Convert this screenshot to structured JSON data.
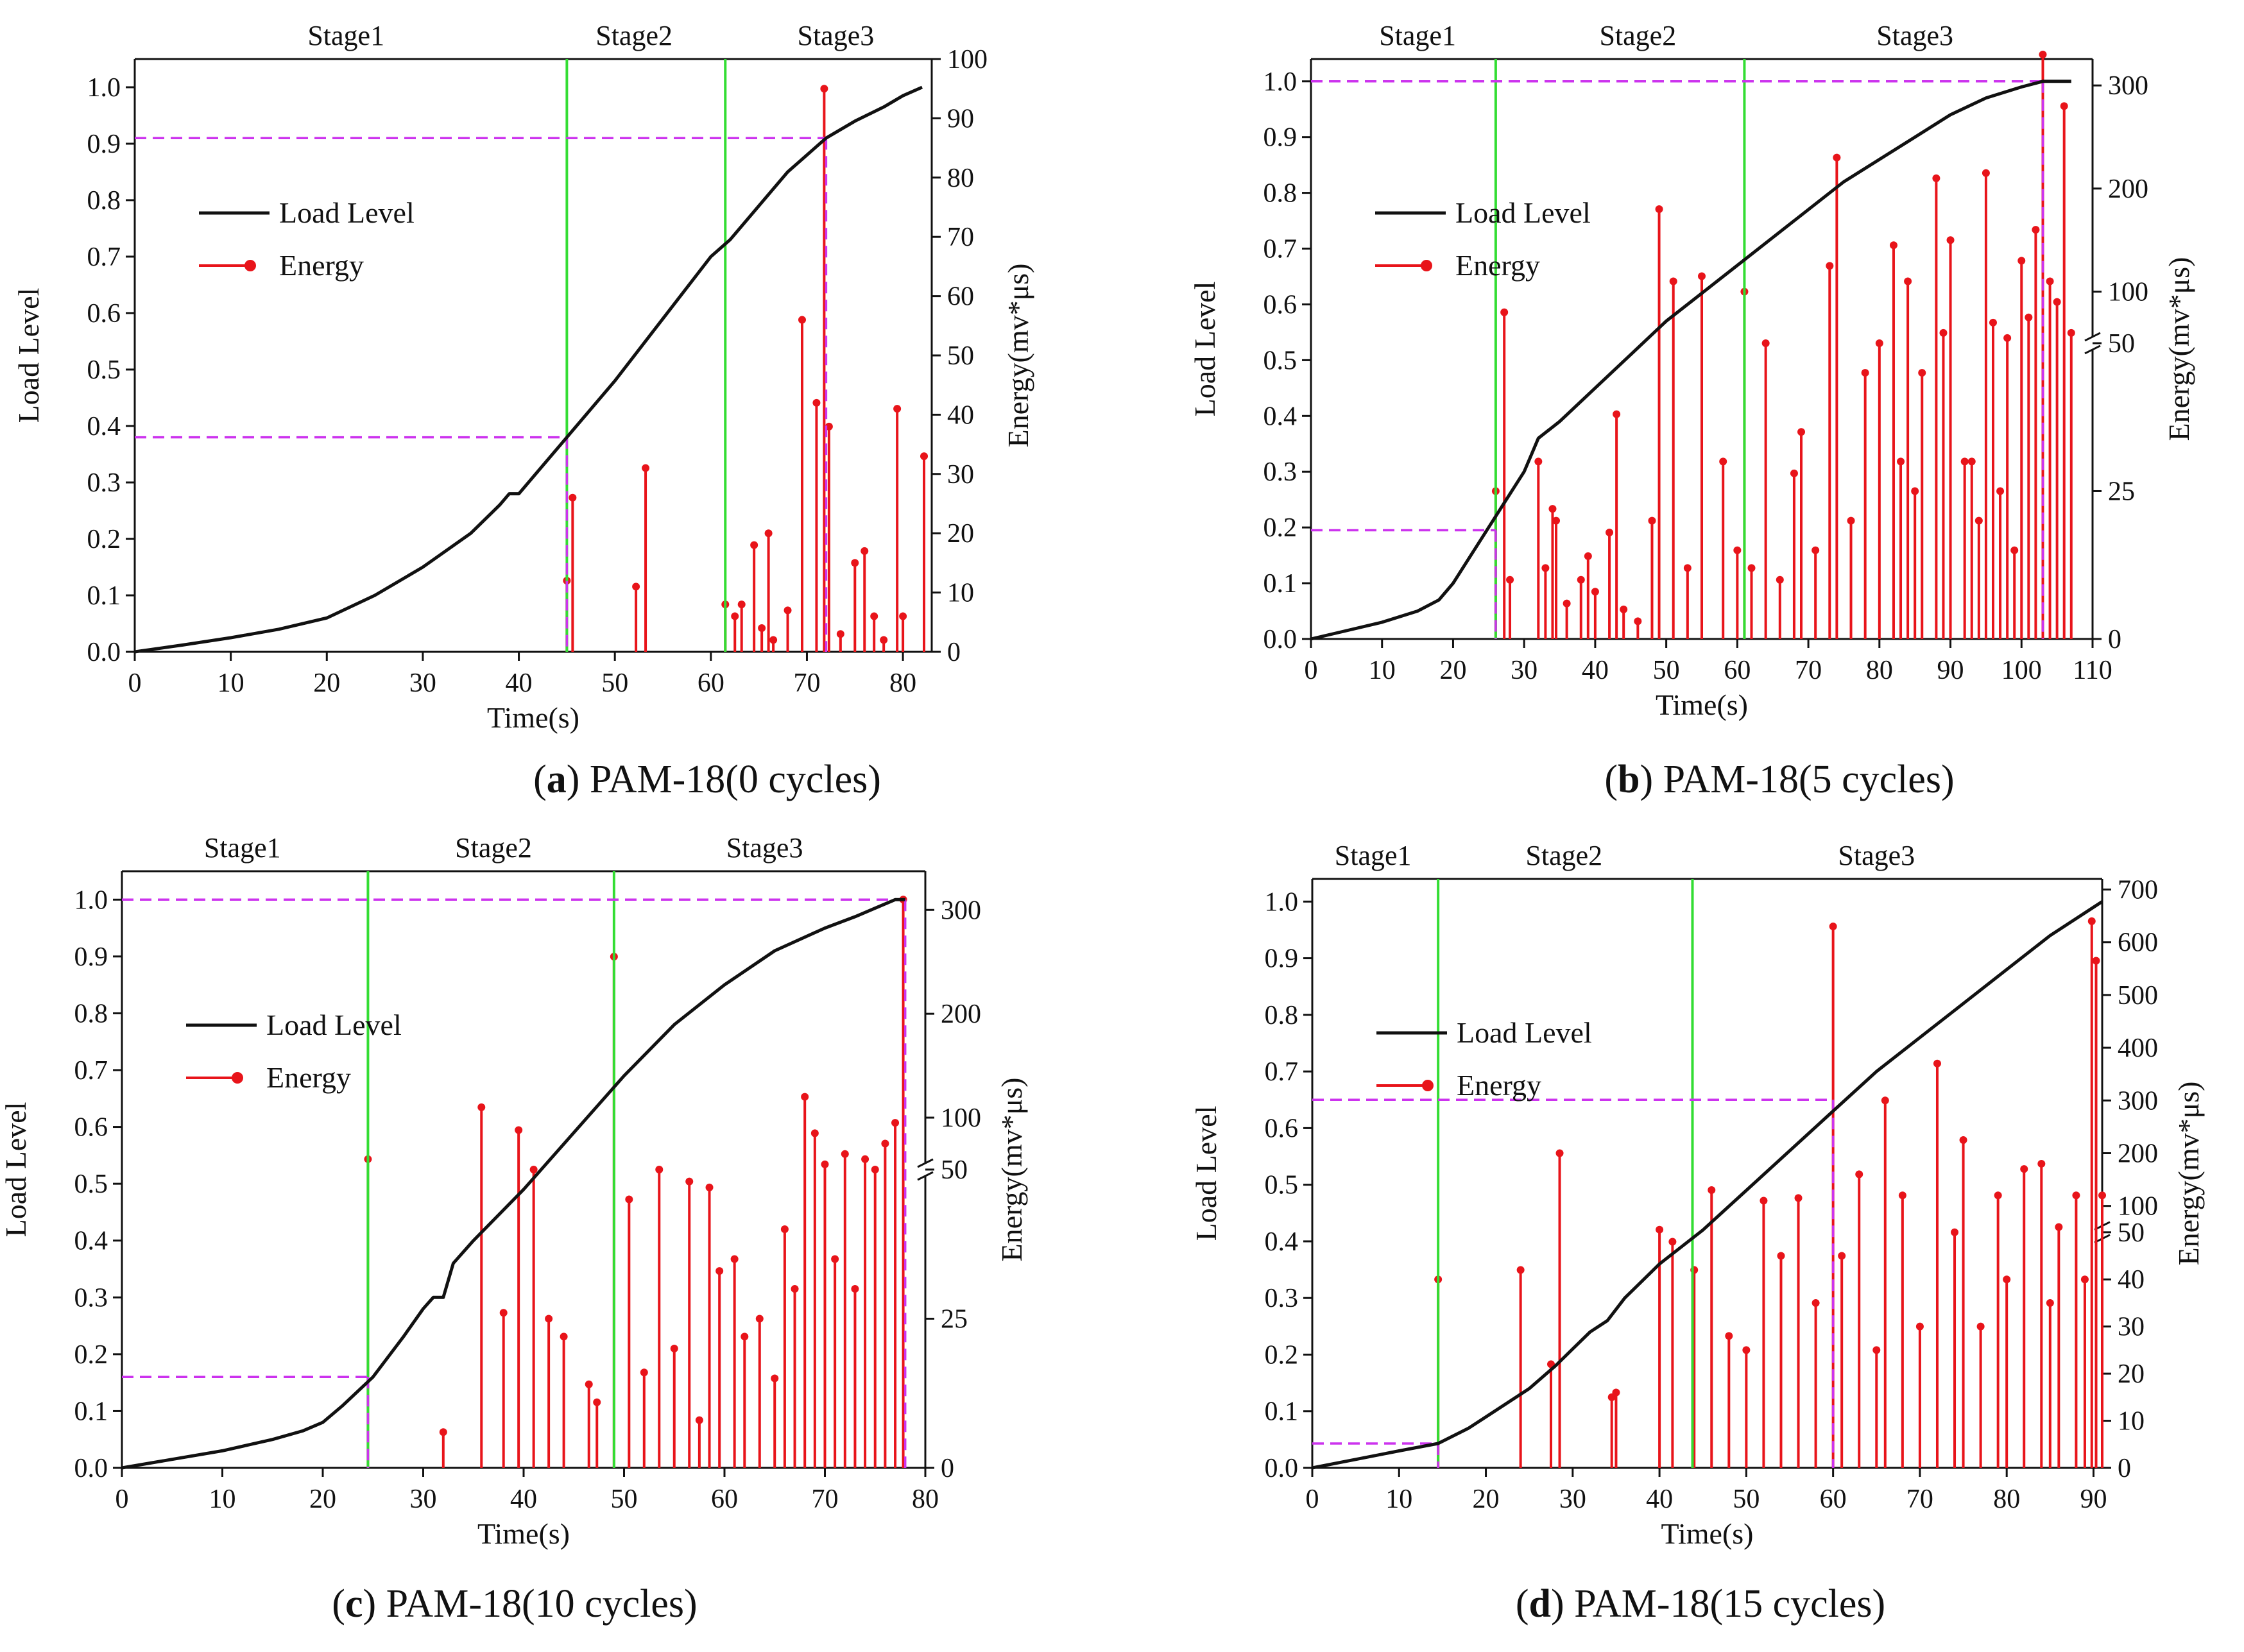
{
  "figure": {
    "captions": [
      {
        "letter": "a",
        "text": "PAM-18(0 cycles)"
      },
      {
        "letter": "b",
        "text": "PAM-18(5 cycles)"
      },
      {
        "letter": "c",
        "text": "PAM-18(10 cycles)"
      },
      {
        "letter": "d",
        "text": "PAM-18(15 cycles)"
      }
    ]
  },
  "colors": {
    "load": "#111111",
    "energy": "#e8141a",
    "stage_line": "#33dd33",
    "dash": "#cc33ee",
    "axis": "#111111"
  },
  "chart_data": [
    {
      "type": "line",
      "title": "PAM-18(0 cycles)",
      "xlabel": "Time(s)",
      "ylabel": "Load Level",
      "y2label": "Energy(mv*μs)",
      "xlim": [
        0,
        83
      ],
      "xticks": [
        0,
        10,
        20,
        30,
        40,
        50,
        60,
        70,
        80
      ],
      "ylim": [
        0,
        1.05
      ],
      "yticks": [
        0.0,
        0.1,
        0.2,
        0.3,
        0.4,
        0.5,
        0.6,
        0.7,
        0.8,
        0.9,
        1.0
      ],
      "y2_breaks": [],
      "y2_segments": [
        {
          "lo": 0,
          "hi": 100,
          "f0": 0,
          "f1": 1
        }
      ],
      "y2ticks": [
        0,
        10,
        20,
        30,
        40,
        50,
        60,
        70,
        80,
        90,
        100
      ],
      "legend": {
        "load": "Load Level",
        "energy": "Energy"
      },
      "legend_position": "upper-left",
      "stages": [
        {
          "label": "Stage1",
          "x": 22
        },
        {
          "label": "Stage2",
          "x": 52
        },
        {
          "label": "Stage3",
          "x": 73
        }
      ],
      "stage_boundaries": [
        45,
        61.5
      ],
      "dashed_lines": [
        {
          "x": 45,
          "y": 0.38
        },
        {
          "x": 72,
          "y": 0.91
        }
      ],
      "load_level": {
        "x": [
          0,
          5,
          10,
          15,
          20,
          25,
          30,
          35,
          38,
          39,
          40,
          42,
          45,
          50,
          55,
          60,
          62,
          65,
          68,
          70,
          72,
          75,
          78,
          80,
          82
        ],
        "y": [
          0,
          0.012,
          0.025,
          0.04,
          0.06,
          0.1,
          0.15,
          0.21,
          0.26,
          0.28,
          0.28,
          0.32,
          0.38,
          0.48,
          0.59,
          0.7,
          0.73,
          0.79,
          0.85,
          0.88,
          0.91,
          0.94,
          0.965,
          0.985,
          1.0
        ]
      },
      "energy": {
        "x": [
          45,
          45.6,
          52.2,
          53.2,
          61.5,
          62.5,
          63.2,
          64.5,
          65.3,
          66,
          66.5,
          68,
          69.5,
          71,
          71.8,
          72.3,
          73.5,
          75,
          76,
          77,
          78,
          79.4,
          80,
          82.2
        ],
        "y": [
          12,
          26,
          11,
          31,
          8,
          6,
          8,
          18,
          4,
          20,
          2,
          7,
          56,
          42,
          95,
          38,
          3,
          15,
          17,
          6,
          2,
          41,
          6,
          33
        ]
      }
    },
    {
      "type": "line",
      "title": "PAM-18(5 cycles)",
      "xlabel": "Time(s)",
      "ylabel": "Load Level",
      "y2label": "Energy(mv*μs)",
      "xlim": [
        0,
        110
      ],
      "xticks": [
        0,
        10,
        20,
        30,
        40,
        50,
        60,
        70,
        80,
        90,
        100,
        110
      ],
      "ylim": [
        0,
        1.04
      ],
      "yticks": [
        0.0,
        0.1,
        0.2,
        0.3,
        0.4,
        0.5,
        0.6,
        0.7,
        0.8,
        0.9,
        1.0
      ],
      "y2_breaks": [
        50
      ],
      "y2_segments": [
        {
          "lo": 0,
          "hi": 50,
          "f0": 0,
          "f1": 0.51
        },
        {
          "lo": 50,
          "hi": 320,
          "f0": 0.51,
          "f1": 0.99
        }
      ],
      "y2ticks": [
        0,
        25,
        50,
        100,
        200,
        300
      ],
      "legend": {
        "load": "Load Level",
        "energy": "Energy"
      },
      "legend_position": "upper-left",
      "stages": [
        {
          "label": "Stage1",
          "x": 15
        },
        {
          "label": "Stage2",
          "x": 46
        },
        {
          "label": "Stage3",
          "x": 85
        }
      ],
      "stage_boundaries": [
        26,
        61
      ],
      "dashed_lines": [
        {
          "x": 26,
          "y": 0.195
        },
        {
          "x": 103,
          "y": 1.0
        }
      ],
      "load_level": {
        "x": [
          0,
          5,
          10,
          15,
          18,
          20,
          22,
          25,
          28,
          30,
          31,
          32,
          35,
          40,
          45,
          50,
          55,
          60,
          65,
          70,
          75,
          80,
          85,
          90,
          95,
          100,
          103,
          105,
          107
        ],
        "y": [
          0,
          0.015,
          0.03,
          0.05,
          0.07,
          0.1,
          0.14,
          0.2,
          0.26,
          0.3,
          0.33,
          0.36,
          0.39,
          0.45,
          0.51,
          0.57,
          0.62,
          0.67,
          0.72,
          0.77,
          0.82,
          0.86,
          0.9,
          0.94,
          0.97,
          0.99,
          1.0,
          1.0,
          1.0
        ]
      },
      "energy": {
        "x": [
          26,
          27.2,
          28,
          32,
          33,
          34,
          34.5,
          36,
          38,
          39,
          40,
          42,
          43,
          44,
          46,
          48,
          49,
          51,
          53,
          55,
          58,
          60,
          61,
          62,
          64,
          66,
          68,
          69,
          71,
          73,
          74,
          76,
          78,
          80,
          82,
          83,
          84,
          85,
          86,
          88,
          89,
          90,
          92,
          93,
          94,
          95,
          96,
          97,
          98,
          99,
          100,
          101,
          102,
          103,
          104,
          105,
          106,
          107
        ],
        "y": [
          25,
          80,
          10,
          30,
          12,
          22,
          20,
          6,
          10,
          14,
          8,
          18,
          38,
          5,
          3,
          20,
          180,
          110,
          12,
          115,
          30,
          15,
          100,
          12,
          50,
          10,
          28,
          35,
          15,
          125,
          230,
          20,
          45,
          50,
          145,
          30,
          110,
          25,
          45,
          210,
          60,
          150,
          30,
          30,
          20,
          215,
          70,
          25,
          55,
          15,
          130,
          75,
          160,
          330,
          110,
          90,
          280,
          60
        ]
      }
    },
    {
      "type": "line",
      "title": "PAM-18(10 cycles)",
      "xlabel": "Time(s)",
      "ylabel": "Load Level",
      "y2label": "Energy(mv*μs)",
      "xlim": [
        0,
        80
      ],
      "xticks": [
        0,
        10,
        20,
        30,
        40,
        50,
        60,
        70,
        80
      ],
      "ylim": [
        0,
        1.05
      ],
      "yticks": [
        0.0,
        0.1,
        0.2,
        0.3,
        0.4,
        0.5,
        0.6,
        0.7,
        0.8,
        0.9,
        1.0
      ],
      "y2_breaks": [
        50
      ],
      "y2_segments": [
        {
          "lo": 0,
          "hi": 50,
          "f0": 0,
          "f1": 0.5
        },
        {
          "lo": 50,
          "hi": 320,
          "f0": 0.5,
          "f1": 0.97
        }
      ],
      "y2ticks": [
        0,
        25,
        50,
        100,
        200,
        300
      ],
      "legend": {
        "load": "Load Level",
        "energy": "Energy"
      },
      "legend_position": "upper-left",
      "stages": [
        {
          "label": "Stage1",
          "x": 12
        },
        {
          "label": "Stage2",
          "x": 37
        },
        {
          "label": "Stage3",
          "x": 64
        }
      ],
      "stage_boundaries": [
        24.5,
        49
      ],
      "dashed_lines": [
        {
          "x": 24.5,
          "y": 0.16
        },
        {
          "x": 78,
          "y": 1.0
        }
      ],
      "load_level": {
        "x": [
          0,
          5,
          10,
          15,
          18,
          20,
          22,
          25,
          28,
          30,
          31,
          32,
          33,
          35,
          40,
          45,
          50,
          55,
          60,
          65,
          70,
          73,
          75,
          77,
          78
        ],
        "y": [
          0,
          0.015,
          0.03,
          0.05,
          0.065,
          0.08,
          0.11,
          0.16,
          0.23,
          0.28,
          0.3,
          0.3,
          0.36,
          0.4,
          0.49,
          0.59,
          0.69,
          0.78,
          0.85,
          0.91,
          0.95,
          0.97,
          0.985,
          1.0,
          1.0
        ]
      },
      "energy": {
        "x": [
          24.5,
          32,
          35.8,
          38,
          39.5,
          41,
          42.5,
          44,
          46.5,
          47.3,
          49,
          50.5,
          52,
          53.5,
          55,
          56.5,
          57.5,
          58.5,
          59.5,
          61,
          62,
          63.5,
          65,
          66,
          67,
          68,
          69,
          70,
          71,
          72,
          73,
          74,
          75,
          76,
          77,
          77.8
        ],
        "y": [
          60,
          6,
          110,
          26,
          88,
          50,
          25,
          22,
          14,
          11,
          255,
          45,
          16,
          50,
          20,
          48,
          8,
          47,
          33,
          35,
          22,
          25,
          15,
          40,
          30,
          120,
          85,
          55,
          35,
          65,
          30,
          60,
          50,
          75,
          95,
          310
        ]
      }
    },
    {
      "type": "line",
      "title": "PAM-18(15 cycles)",
      "xlabel": "Time(s)",
      "ylabel": "Load Level",
      "y2label": "Energy(mv*μs)",
      "xlim": [
        0,
        91
      ],
      "xticks": [
        0,
        10,
        20,
        30,
        40,
        50,
        60,
        70,
        80,
        90
      ],
      "ylim": [
        0,
        1.04
      ],
      "yticks": [
        0.0,
        0.1,
        0.2,
        0.3,
        0.4,
        0.5,
        0.6,
        0.7,
        0.8,
        0.9,
        1.0
      ],
      "y2_breaks": [
        50
      ],
      "y2_segments": [
        {
          "lo": 0,
          "hi": 50,
          "f0": 0,
          "f1": 0.4
        },
        {
          "lo": 50,
          "hi": 700,
          "f0": 0.4,
          "f1": 0.982
        }
      ],
      "y2ticks": [
        0,
        10,
        20,
        30,
        40,
        50,
        100,
        200,
        300,
        400,
        500,
        600,
        700
      ],
      "legend": {
        "load": "Load Level",
        "energy": "Energy"
      },
      "legend_position": "upper-left",
      "stages": [
        {
          "label": "Stage1",
          "x": 7
        },
        {
          "label": "Stage2",
          "x": 29
        },
        {
          "label": "Stage3",
          "x": 65
        }
      ],
      "stage_boundaries": [
        14.5,
        43.8
      ],
      "dashed_lines": [
        {
          "x": 14.5,
          "y": 0.043
        },
        {
          "x": 60,
          "y": 0.65
        }
      ],
      "load_level": {
        "x": [
          0,
          5,
          10,
          14.5,
          18,
          20,
          25,
          28,
          30,
          32,
          34,
          36,
          40,
          45,
          50,
          55,
          60,
          65,
          70,
          75,
          80,
          85,
          90,
          91
        ],
        "y": [
          0,
          0.015,
          0.03,
          0.043,
          0.07,
          0.09,
          0.14,
          0.18,
          0.21,
          0.24,
          0.26,
          0.3,
          0.36,
          0.42,
          0.49,
          0.56,
          0.63,
          0.7,
          0.76,
          0.82,
          0.88,
          0.94,
          0.99,
          1.0
        ]
      },
      "energy": {
        "x": [
          14.5,
          24,
          27.5,
          28.5,
          34.5,
          35,
          40,
          41.5,
          44,
          46,
          48,
          50,
          52,
          54,
          56,
          58,
          60,
          61,
          63,
          65,
          66,
          68,
          70,
          72,
          74,
          75,
          77,
          79,
          80,
          82,
          84,
          85,
          86,
          88,
          89,
          89.8,
          90.3,
          91
        ],
        "y": [
          40,
          42,
          22,
          200,
          15,
          16,
          55,
          48,
          42,
          130,
          28,
          25,
          110,
          45,
          115,
          35,
          630,
          45,
          160,
          25,
          300,
          120,
          30,
          370,
          50,
          225,
          30,
          120,
          40,
          170,
          180,
          35,
          60,
          120,
          40,
          640,
          565,
          120
        ]
      }
    }
  ]
}
